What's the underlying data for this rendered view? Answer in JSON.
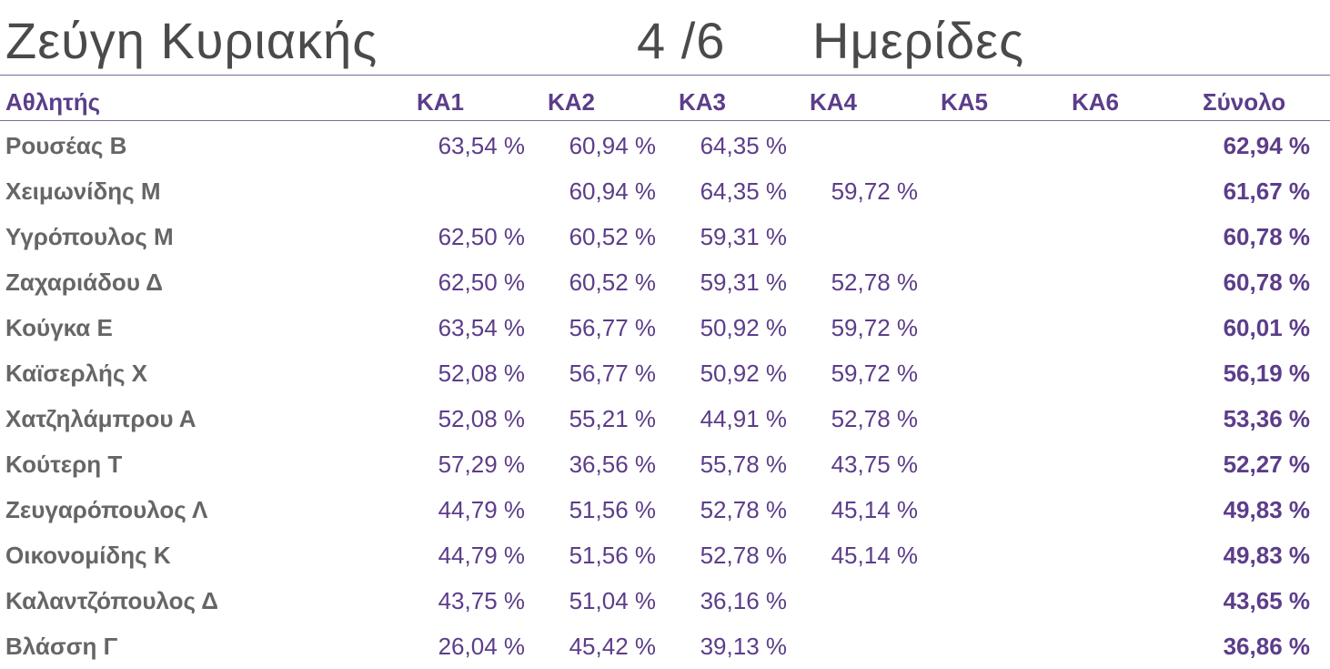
{
  "title": {
    "left": "Ζεύγη Κυριακής",
    "middle": "4 /6",
    "right": "Ημερίδες"
  },
  "headers": {
    "athlete": "Αθλητής",
    "ka1": "ΚΑ1",
    "ka2": "ΚΑ2",
    "ka3": "ΚΑ3",
    "ka4": "ΚΑ4",
    "ka5": "ΚΑ5",
    "ka6": "ΚΑ6",
    "total": "Σύνολο"
  },
  "rows": [
    {
      "name": "Ρουσέας Β",
      "ka1": "63,54 %",
      "ka2": "60,94 %",
      "ka3": "64,35 %",
      "ka4": "",
      "ka5": "",
      "ka6": "",
      "total": "62,94 %"
    },
    {
      "name": "Χειμωνίδης Μ",
      "ka1": "",
      "ka2": "60,94 %",
      "ka3": "64,35 %",
      "ka4": "59,72 %",
      "ka5": "",
      "ka6": "",
      "total": "61,67 %"
    },
    {
      "name": "Υγρόπουλος Μ",
      "ka1": "62,50 %",
      "ka2": "60,52 %",
      "ka3": "59,31 %",
      "ka4": "",
      "ka5": "",
      "ka6": "",
      "total": "60,78 %"
    },
    {
      "name": "Ζαχαριάδου Δ",
      "ka1": "62,50 %",
      "ka2": "60,52 %",
      "ka3": "59,31 %",
      "ka4": "52,78 %",
      "ka5": "",
      "ka6": "",
      "total": "60,78 %"
    },
    {
      "name": "Κούγκα Ε",
      "ka1": "63,54 %",
      "ka2": "56,77 %",
      "ka3": "50,92 %",
      "ka4": "59,72 %",
      "ka5": "",
      "ka6": "",
      "total": "60,01 %"
    },
    {
      "name": "Καϊσερλής Χ",
      "ka1": "52,08 %",
      "ka2": "56,77 %",
      "ka3": "50,92 %",
      "ka4": "59,72 %",
      "ka5": "",
      "ka6": "",
      "total": "56,19 %"
    },
    {
      "name": "Χατζηλάμπρου Α",
      "ka1": "52,08 %",
      "ka2": "55,21 %",
      "ka3": "44,91 %",
      "ka4": "52,78 %",
      "ka5": "",
      "ka6": "",
      "total": "53,36 %"
    },
    {
      "name": "Κούτερη Τ",
      "ka1": "57,29 %",
      "ka2": "36,56 %",
      "ka3": "55,78 %",
      "ka4": "43,75 %",
      "ka5": "",
      "ka6": "",
      "total": "52,27 %"
    },
    {
      "name": "Ζευγαρόπουλος Λ",
      "ka1": "44,79 %",
      "ka2": "51,56 %",
      "ka3": "52,78 %",
      "ka4": "45,14 %",
      "ka5": "",
      "ka6": "",
      "total": "49,83 %"
    },
    {
      "name": "Οικονομίδης Κ",
      "ka1": "44,79 %",
      "ka2": "51,56 %",
      "ka3": "52,78 %",
      "ka4": "45,14 %",
      "ka5": "",
      "ka6": "",
      "total": "49,83 %"
    },
    {
      "name": "Καλαντζόπουλος Δ",
      "ka1": "43,75 %",
      "ka2": "51,04 %",
      "ka3": "36,16 %",
      "ka4": "",
      "ka5": "",
      "ka6": "",
      "total": "43,65 %"
    },
    {
      "name": "Βλάσση Γ",
      "ka1": "26,04 %",
      "ka2": "45,42 %",
      "ka3": "39,13 %",
      "ka4": "",
      "ka5": "",
      "ka6": "",
      "total": "36,86 %"
    }
  ],
  "colors": {
    "accent": "#5c3d8a",
    "name_text": "#666666",
    "title_text": "#4a4a4a",
    "rule": "#7b6a9c"
  }
}
